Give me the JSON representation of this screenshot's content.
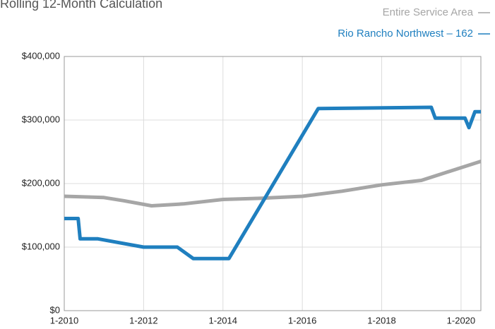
{
  "chart_data": {
    "type": "line",
    "title": "Rolling 12-Month Calculation",
    "xlim": [
      2010,
      2020.5
    ],
    "xticks": [
      {
        "value": 2010,
        "label": "1-2010"
      },
      {
        "value": 2012,
        "label": "1-2012"
      },
      {
        "value": 2014,
        "label": "1-2014"
      },
      {
        "value": 2016,
        "label": "1-2016"
      },
      {
        "value": 2018,
        "label": "1-2018"
      },
      {
        "value": 2020,
        "label": "1-2020"
      }
    ],
    "ylim": [
      0,
      400000
    ],
    "yticks": [
      {
        "value": 0,
        "label": "$0"
      },
      {
        "value": 100000,
        "label": "$100,000"
      },
      {
        "value": 200000,
        "label": "$200,000"
      },
      {
        "value": 300000,
        "label": "$300,000"
      },
      {
        "value": 400000,
        "label": "$400,000"
      }
    ],
    "grid": true,
    "legend": "top-right",
    "series": [
      {
        "name": "Entire Service Area",
        "color": "#a6a6a6",
        "x": [
          2010,
          2011,
          2011.5,
          2012.2,
          2013,
          2014,
          2015,
          2016,
          2017,
          2018,
          2019,
          2020,
          2020.5
        ],
        "values": [
          180000,
          178000,
          173000,
          165000,
          168000,
          175000,
          177000,
          180000,
          188000,
          198000,
          205000,
          225000,
          235000
        ]
      },
      {
        "name": "Rio Rancho Northwest – 162",
        "color": "#1f7fbf",
        "x": [
          2010,
          2010.35,
          2010.4,
          2010.85,
          2012,
          2012.85,
          2013.25,
          2014.15,
          2016.4,
          2019.25,
          2019.35,
          2020.1,
          2020.2,
          2020.35,
          2020.5
        ],
        "values": [
          145000,
          145000,
          113000,
          113000,
          100000,
          100000,
          82000,
          82000,
          318000,
          320000,
          303000,
          303000,
          288000,
          313000,
          313000
        ]
      }
    ]
  }
}
